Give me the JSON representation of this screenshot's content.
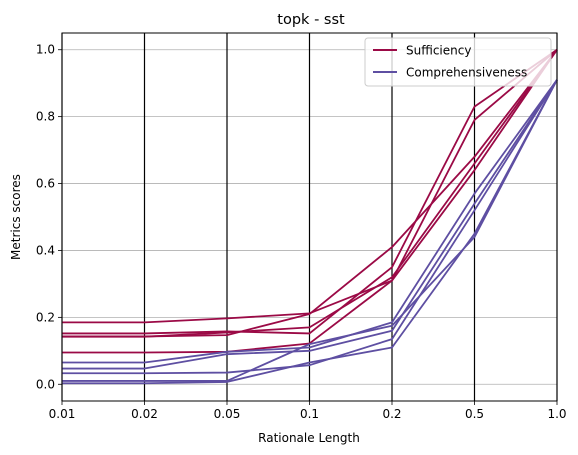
{
  "chart_data": {
    "type": "line",
    "title": "topk - sst",
    "xlabel": "Rationale Length",
    "ylabel": "Metrics scores",
    "categories": [
      "0.01",
      "0.02",
      "0.05",
      "0.1",
      "0.2",
      "0.5",
      "1.0"
    ],
    "ylim": [
      -0.05,
      1.05
    ],
    "yticks": [
      "0.0",
      "0.2",
      "0.4",
      "0.6",
      "0.8",
      "1.0"
    ],
    "grid": "horizontal",
    "legend_position": "top-right",
    "legend": [
      {
        "label": "Sufficiency",
        "color": "#9b0a46"
      },
      {
        "label": "Comprehensiveness",
        "color": "#5e4fa2"
      }
    ],
    "series": [
      {
        "group": "Sufficiency",
        "color": "#9b0a46",
        "values": [
          0.185,
          0.185,
          0.197,
          0.212,
          0.31,
          0.79,
          1.0
        ]
      },
      {
        "group": "Sufficiency",
        "color": "#9b0a46",
        "values": [
          0.152,
          0.152,
          0.158,
          0.152,
          0.35,
          0.83,
          1.0
        ]
      },
      {
        "group": "Sufficiency",
        "color": "#9b0a46",
        "values": [
          0.143,
          0.143,
          0.147,
          0.21,
          0.41,
          0.68,
          1.0
        ]
      },
      {
        "group": "Sufficiency",
        "color": "#9b0a46",
        "values": [
          0.142,
          0.142,
          0.155,
          0.17,
          0.32,
          0.66,
          1.0
        ]
      },
      {
        "group": "Sufficiency",
        "color": "#9b0a46",
        "values": [
          0.095,
          0.095,
          0.097,
          0.122,
          0.31,
          0.64,
          1.0
        ]
      },
      {
        "group": "Comprehensiveness",
        "color": "#5e4fa2",
        "values": [
          0.065,
          0.065,
          0.097,
          0.11,
          0.185,
          0.57,
          0.91
        ]
      },
      {
        "group": "Comprehensiveness",
        "color": "#5e4fa2",
        "values": [
          0.047,
          0.047,
          0.09,
          0.1,
          0.16,
          0.54,
          0.91
        ]
      },
      {
        "group": "Comprehensiveness",
        "color": "#5e4fa2",
        "values": [
          0.033,
          0.033,
          0.035,
          0.057,
          0.135,
          0.52,
          0.91
        ]
      },
      {
        "group": "Comprehensiveness",
        "color": "#5e4fa2",
        "values": [
          0.01,
          0.01,
          0.01,
          0.12,
          0.175,
          0.44,
          0.91
        ]
      },
      {
        "group": "Comprehensiveness",
        "color": "#5e4fa2",
        "values": [
          0.003,
          0.003,
          0.007,
          0.065,
          0.11,
          0.45,
          0.91
        ]
      }
    ]
  }
}
